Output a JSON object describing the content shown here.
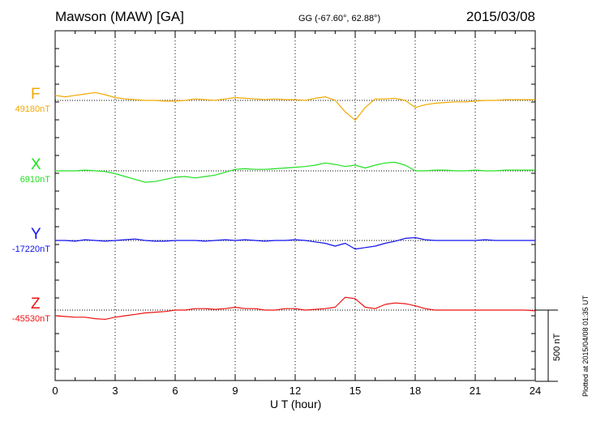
{
  "header": {
    "station": "Mawson (MAW)  [GA]",
    "coords": "GG (-67.60°,  62.88°)",
    "date": "2015/03/08"
  },
  "footer": {
    "plotted": "Plotted at 2015/04/08 01:35 UT"
  },
  "chart_data": {
    "type": "line",
    "xlabel": "U T (hour)",
    "xlim": [
      0,
      24
    ],
    "xticks": [
      0,
      3,
      6,
      9,
      12,
      15,
      18,
      21,
      24
    ],
    "scale_bar_label": "500 nT",
    "scale_bar_nT": 500,
    "x": [
      0,
      0.5,
      1,
      1.5,
      2,
      2.5,
      3,
      3.5,
      4,
      4.5,
      5,
      5.5,
      6,
      6.5,
      7,
      7.5,
      8,
      8.5,
      9,
      9.5,
      10,
      10.5,
      11,
      11.5,
      12,
      12.5,
      13,
      13.5,
      14,
      14.5,
      15,
      15.5,
      16,
      16.5,
      17,
      17.5,
      18,
      18.5,
      19,
      19.5,
      20,
      20.5,
      21,
      21.5,
      22,
      22.5,
      23,
      23.5,
      24
    ],
    "series": [
      {
        "name": "F",
        "baseline_label": "49180nT",
        "color": "#f2a900",
        "values": [
          35,
          25,
          35,
          45,
          55,
          40,
          20,
          10,
          5,
          0,
          0,
          -5,
          -5,
          0,
          10,
          5,
          0,
          10,
          20,
          15,
          10,
          5,
          10,
          5,
          5,
          0,
          15,
          25,
          0,
          -80,
          -140,
          -50,
          10,
          10,
          15,
          0,
          -50,
          -30,
          -20,
          -15,
          -10,
          -10,
          -5,
          0,
          0,
          5,
          5,
          5,
          5
        ]
      },
      {
        "name": "X",
        "baseline_label": "6910nT",
        "color": "#22e022",
        "values": [
          0,
          0,
          0,
          5,
          0,
          -5,
          -20,
          -40,
          -60,
          -80,
          -75,
          -60,
          -45,
          -40,
          -50,
          -40,
          -30,
          -10,
          10,
          15,
          10,
          10,
          15,
          20,
          25,
          30,
          40,
          55,
          45,
          30,
          40,
          20,
          40,
          55,
          60,
          40,
          0,
          0,
          5,
          5,
          0,
          0,
          5,
          0,
          0,
          5,
          5,
          5,
          5
        ]
      },
      {
        "name": "Y",
        "baseline_label": "-17220nT",
        "color": "#1010ee",
        "values": [
          0,
          0,
          -5,
          5,
          0,
          -5,
          0,
          5,
          10,
          0,
          -5,
          -5,
          0,
          0,
          0,
          -5,
          0,
          5,
          0,
          5,
          0,
          -5,
          0,
          0,
          5,
          0,
          -10,
          -20,
          -40,
          -20,
          -60,
          -50,
          -40,
          -20,
          -5,
          15,
          20,
          5,
          0,
          0,
          0,
          0,
          0,
          5,
          0,
          0,
          0,
          0,
          0
        ]
      },
      {
        "name": "Z",
        "baseline_label": "-45530nT",
        "color": "#ee1111",
        "values": [
          -40,
          -45,
          -50,
          -50,
          -60,
          -65,
          -50,
          -40,
          -30,
          -20,
          -15,
          -10,
          0,
          0,
          10,
          10,
          5,
          10,
          20,
          10,
          10,
          0,
          0,
          10,
          10,
          0,
          5,
          10,
          20,
          90,
          80,
          20,
          10,
          40,
          50,
          45,
          30,
          10,
          0,
          0,
          0,
          0,
          0,
          0,
          0,
          0,
          0,
          0,
          -5
        ]
      }
    ]
  }
}
